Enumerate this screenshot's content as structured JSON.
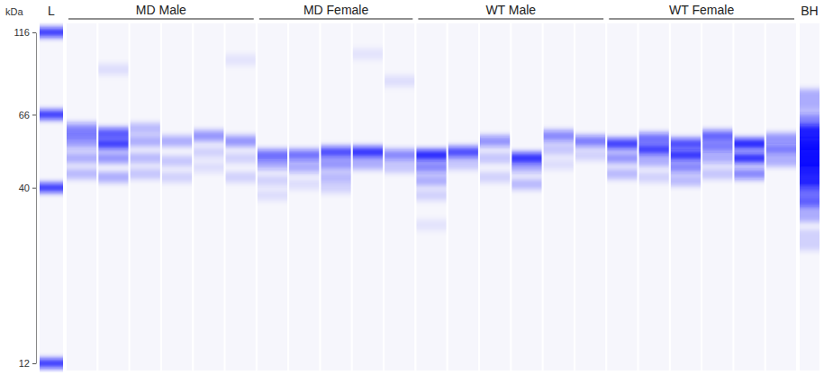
{
  "chart_data": {
    "type": "blot",
    "ylabel": "kDa",
    "log": "y",
    "color": "#1010ff",
    "tick_labels": "y",
    "ylim": [
      12,
      116
    ],
    "yticks": [
      12,
      40,
      66,
      116
    ],
    "ladder": {
      "label": "L",
      "bands": [
        {
          "kda": 116,
          "intensity": 0.85
        },
        {
          "kda": 66,
          "intensity": 0.85
        },
        {
          "kda": 40,
          "intensity": 0.85
        },
        {
          "kda": 12,
          "intensity": 0.85
        }
      ]
    },
    "groups": [
      {
        "name": "MD Male",
        "lanes": [
          [
            {
              "kda": 60,
              "intensity": 0.45
            },
            {
              "kda": 57,
              "intensity": 0.4
            },
            {
              "kda": 54,
              "intensity": 0.35
            },
            {
              "kda": 49,
              "intensity": 0.3
            },
            {
              "kda": 44,
              "intensity": 0.25
            }
          ],
          [
            {
              "kda": 90,
              "intensity": 0.1
            },
            {
              "kda": 58,
              "intensity": 0.7
            },
            {
              "kda": 54,
              "intensity": 0.8
            },
            {
              "kda": 49,
              "intensity": 0.4
            },
            {
              "kda": 43,
              "intensity": 0.3
            }
          ],
          [
            {
              "kda": 60,
              "intensity": 0.25
            },
            {
              "kda": 55,
              "intensity": 0.3
            },
            {
              "kda": 49,
              "intensity": 0.25
            },
            {
              "kda": 44,
              "intensity": 0.2
            }
          ],
          [
            {
              "kda": 55,
              "intensity": 0.3
            },
            {
              "kda": 48,
              "intensity": 0.2
            },
            {
              "kda": 43,
              "intensity": 0.15
            }
          ],
          [
            {
              "kda": 57,
              "intensity": 0.4
            },
            {
              "kda": 51,
              "intensity": 0.15
            },
            {
              "kda": 46,
              "intensity": 0.1
            }
          ],
          [
            {
              "kda": 96,
              "intensity": 0.08
            },
            {
              "kda": 55,
              "intensity": 0.4
            },
            {
              "kda": 49,
              "intensity": 0.15
            },
            {
              "kda": 43,
              "intensity": 0.15
            }
          ]
        ]
      },
      {
        "name": "MD Female",
        "lanes": [
          [
            {
              "kda": 50,
              "intensity": 0.6
            },
            {
              "kda": 47,
              "intensity": 0.35
            },
            {
              "kda": 42,
              "intensity": 0.15
            },
            {
              "kda": 38,
              "intensity": 0.1
            }
          ],
          [
            {
              "kda": 50,
              "intensity": 0.6
            },
            {
              "kda": 46,
              "intensity": 0.35
            },
            {
              "kda": 41,
              "intensity": 0.1
            }
          ],
          [
            {
              "kda": 51,
              "intensity": 0.75
            },
            {
              "kda": 47,
              "intensity": 0.4
            },
            {
              "kda": 43,
              "intensity": 0.25
            },
            {
              "kda": 40,
              "intensity": 0.15
            }
          ],
          [
            {
              "kda": 100,
              "intensity": 0.08
            },
            {
              "kda": 51,
              "intensity": 0.85
            },
            {
              "kda": 47,
              "intensity": 0.3
            }
          ],
          [
            {
              "kda": 83,
              "intensity": 0.1
            },
            {
              "kda": 50,
              "intensity": 0.5
            },
            {
              "kda": 46,
              "intensity": 0.2
            }
          ]
        ]
      },
      {
        "name": "WT Male",
        "lanes": [
          [
            {
              "kda": 50,
              "intensity": 0.9
            },
            {
              "kda": 46,
              "intensity": 0.5
            },
            {
              "kda": 42,
              "intensity": 0.3
            },
            {
              "kda": 38,
              "intensity": 0.15
            },
            {
              "kda": 31,
              "intensity": 0.08
            }
          ],
          [
            {
              "kda": 51,
              "intensity": 0.75
            },
            {
              "kda": 47,
              "intensity": 0.2
            }
          ],
          [
            {
              "kda": 55,
              "intensity": 0.45
            },
            {
              "kda": 49,
              "intensity": 0.2
            },
            {
              "kda": 43,
              "intensity": 0.15
            }
          ],
          [
            {
              "kda": 49,
              "intensity": 0.85
            },
            {
              "kda": 46,
              "intensity": 0.35
            },
            {
              "kda": 41,
              "intensity": 0.25
            }
          ],
          [
            {
              "kda": 57,
              "intensity": 0.5
            },
            {
              "kda": 52,
              "intensity": 0.2
            },
            {
              "kda": 47,
              "intensity": 0.1
            }
          ],
          [
            {
              "kda": 55,
              "intensity": 0.55
            },
            {
              "kda": 50,
              "intensity": 0.15
            }
          ]
        ]
      },
      {
        "name": "WT Female",
        "lanes": [
          [
            {
              "kda": 54,
              "intensity": 0.8
            },
            {
              "kda": 49,
              "intensity": 0.4
            },
            {
              "kda": 44,
              "intensity": 0.25
            }
          ],
          [
            {
              "kda": 56,
              "intensity": 0.6
            },
            {
              "kda": 52,
              "intensity": 0.8
            },
            {
              "kda": 48,
              "intensity": 0.3
            },
            {
              "kda": 43,
              "intensity": 0.15
            }
          ],
          [
            {
              "kda": 54,
              "intensity": 0.75
            },
            {
              "kda": 50,
              "intensity": 0.85
            },
            {
              "kda": 46,
              "intensity": 0.5
            },
            {
              "kda": 42,
              "intensity": 0.25
            }
          ],
          [
            {
              "kda": 57,
              "intensity": 0.65
            },
            {
              "kda": 53,
              "intensity": 0.55
            },
            {
              "kda": 49,
              "intensity": 0.35
            },
            {
              "kda": 44,
              "intensity": 0.2
            }
          ],
          [
            {
              "kda": 54,
              "intensity": 0.9
            },
            {
              "kda": 49,
              "intensity": 0.85
            },
            {
              "kda": 44,
              "intensity": 0.5
            }
          ],
          [
            {
              "kda": 56,
              "intensity": 0.4
            },
            {
              "kda": 52,
              "intensity": 0.55
            },
            {
              "kda": 48,
              "intensity": 0.3
            }
          ]
        ]
      }
    ],
    "reference": {
      "label": "BH",
      "bands": [
        {
          "kda": 73,
          "intensity": 0.3
        },
        {
          "kda": 62,
          "intensity": 0.5
        },
        {
          "kda": 57,
          "intensity": 0.9
        },
        {
          "kda": 52,
          "intensity": 1
        },
        {
          "kda": 48,
          "intensity": 1
        },
        {
          "kda": 43,
          "intensity": 0.9
        },
        {
          "kda": 38,
          "intensity": 0.6
        },
        {
          "kda": 34,
          "intensity": 0.3
        },
        {
          "kda": 28,
          "intensity": 0.15
        }
      ]
    }
  }
}
